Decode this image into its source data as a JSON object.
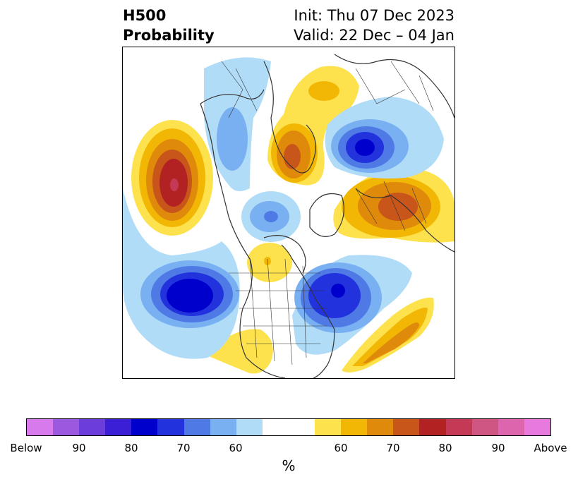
{
  "title": {
    "line1_left": "H500",
    "line2_left": "Probability",
    "line1_right": "Init: Thu 07 Dec 2023",
    "line2_right": "Valid: 22 Dec – 04 Jan"
  },
  "colorbar": {
    "label": "%",
    "colors": [
      "#d67aec",
      "#9b59e0",
      "#6d3ddb",
      "#3a1fd6",
      "#0000cc",
      "#2233dd",
      "#4f7ae6",
      "#78b0f2",
      "#b0dcf8",
      "#ffffff",
      "#ffffff",
      "#fde24d",
      "#f2b705",
      "#e08a0b",
      "#c8551a",
      "#b22222",
      "#c43a56",
      "#cf5683",
      "#dc65ad",
      "#e87ade"
    ],
    "ticks": [
      "Below",
      "90",
      "80",
      "70",
      "60",
      "60",
      "70",
      "80",
      "90",
      "Above"
    ]
  },
  "map": {
    "below_palette": {
      "p60": "#b0dcf8",
      "p65": "#78b0f2",
      "p70": "#4f7ae6",
      "p75": "#2233dd",
      "p80": "#0000cc"
    },
    "above_palette": {
      "p60": "#fde24d",
      "p65": "#f2b705",
      "p70": "#e08a0b",
      "p75": "#c8551a",
      "p80": "#b22222",
      "p85": "#c43a56"
    }
  }
}
